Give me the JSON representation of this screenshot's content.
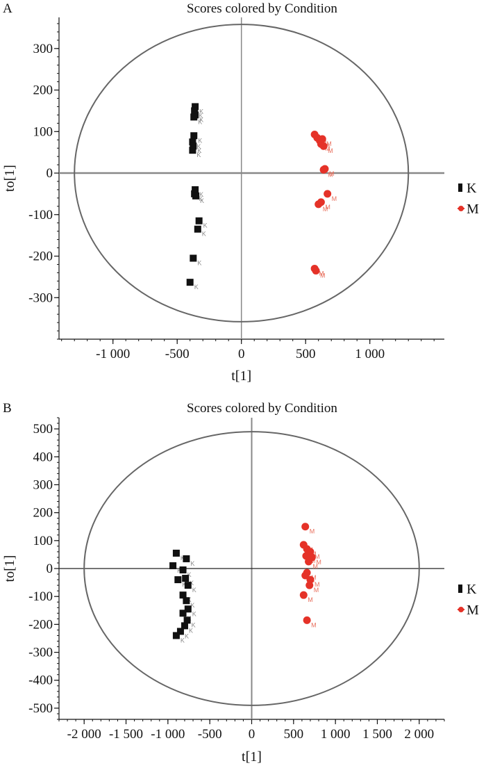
{
  "colors": {
    "K": "#111111",
    "M": "#e53228",
    "K_label": "#8a8a8a",
    "M_label": "#e8705e",
    "ellipse": "#666666"
  },
  "chart_data": [
    {
      "type": "scatter",
      "panel": "A",
      "title": "Scores colored by Condition",
      "xlabel": "t[1]",
      "ylabel": "to[1]",
      "xlim": [
        -1420,
        1580
      ],
      "ylim": [
        -400,
        375
      ],
      "xticks": [
        -1000,
        -500,
        0,
        500,
        1000
      ],
      "xtick_labels": [
        "-1 000",
        "-500",
        "0",
        "500",
        "1 000"
      ],
      "yticks": [
        300,
        200,
        100,
        0,
        -100,
        -200,
        -300
      ],
      "ytick_labels": [
        "300",
        "200",
        "100",
        "0",
        "-100",
        "-200",
        "-300"
      ],
      "ellipse": {
        "rx": 1300,
        "ry": 358
      },
      "legend_position": "right",
      "series": [
        {
          "name": "K",
          "marker": "square",
          "point_label": "K",
          "points": [
            [
              -360,
              160
            ],
            [
              -365,
              150
            ],
            [
              -360,
              140
            ],
            [
              -370,
              135
            ],
            [
              -370,
              90
            ],
            [
              -380,
              75
            ],
            [
              -375,
              65
            ],
            [
              -380,
              55
            ],
            [
              -360,
              -40
            ],
            [
              -365,
              -50
            ],
            [
              -355,
              -55
            ],
            [
              -330,
              -115
            ],
            [
              -340,
              -135
            ],
            [
              -375,
              -205
            ],
            [
              -400,
              -263
            ]
          ]
        },
        {
          "name": "M",
          "marker": "circle",
          "point_label": "M",
          "points": [
            [
              570,
              93
            ],
            [
              590,
              85
            ],
            [
              610,
              78
            ],
            [
              630,
              82
            ],
            [
              620,
              70
            ],
            [
              640,
              65
            ],
            [
              650,
              10
            ],
            [
              640,
              8
            ],
            [
              670,
              -50
            ],
            [
              600,
              -75
            ],
            [
              620,
              -70
            ],
            [
              570,
              -230
            ],
            [
              580,
              -235
            ]
          ]
        }
      ]
    },
    {
      "type": "scatter",
      "panel": "B",
      "title": "Scores colored by Condition",
      "xlabel": "t[1]",
      "ylabel": "to[1]",
      "xlim": [
        -2300,
        2300
      ],
      "ylim": [
        -540,
        540
      ],
      "xticks": [
        -2000,
        -1500,
        -1000,
        -500,
        0,
        500,
        1000,
        1500,
        2000
      ],
      "xtick_labels": [
        "-2 000",
        "-1 500",
        "-1 000",
        "-500",
        "0",
        "500",
        "1 000",
        "1 500",
        "2 000"
      ],
      "yticks": [
        500,
        400,
        300,
        200,
        100,
        0,
        -100,
        -200,
        -300,
        -400,
        -500
      ],
      "ytick_labels": [
        "500",
        "400",
        "300",
        "200",
        "100",
        "0",
        "-100",
        "-200",
        "-300",
        "-400",
        "-500"
      ],
      "ellipse": {
        "rx": 2000,
        "ry": 490
      },
      "legend_position": "right",
      "series": [
        {
          "name": "K",
          "marker": "square",
          "point_label": "K",
          "points": [
            [
              -900,
              55
            ],
            [
              -780,
              35
            ],
            [
              -940,
              10
            ],
            [
              -820,
              -5
            ],
            [
              -880,
              -40
            ],
            [
              -790,
              -35
            ],
            [
              -760,
              -60
            ],
            [
              -820,
              -95
            ],
            [
              -780,
              -115
            ],
            [
              -760,
              -145
            ],
            [
              -820,
              -160
            ],
            [
              -770,
              -185
            ],
            [
              -800,
              -205
            ],
            [
              -850,
              -225
            ],
            [
              -900,
              -240
            ]
          ]
        },
        {
          "name": "M",
          "marker": "circle",
          "point_label": "M",
          "points": [
            [
              640,
              150
            ],
            [
              620,
              85
            ],
            [
              660,
              70
            ],
            [
              700,
              60
            ],
            [
              650,
              45
            ],
            [
              720,
              40
            ],
            [
              680,
              25
            ],
            [
              640,
              -25
            ],
            [
              660,
              -15
            ],
            [
              700,
              -40
            ],
            [
              690,
              -60
            ],
            [
              620,
              -95
            ],
            [
              660,
              -185
            ]
          ]
        }
      ]
    }
  ]
}
